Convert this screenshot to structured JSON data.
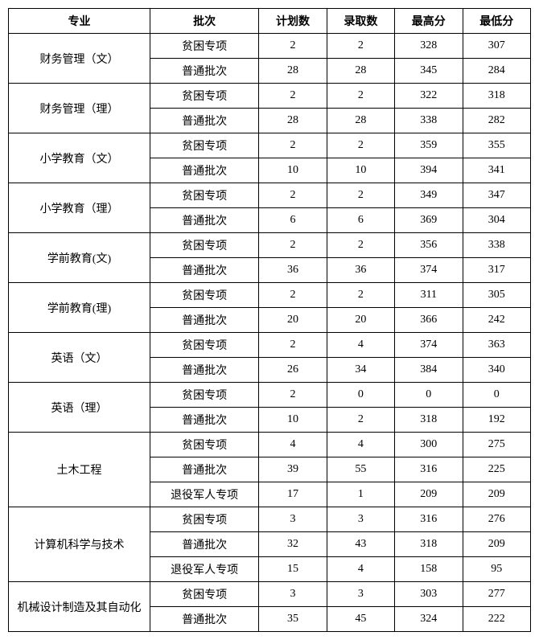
{
  "table": {
    "columns": [
      "专业",
      "批次",
      "计划数",
      "录取数",
      "最高分",
      "最低分"
    ],
    "col_classes": [
      "col-major",
      "col-batch",
      "col-num",
      "col-num",
      "col-num",
      "col-num"
    ],
    "border_color": "#000000",
    "background_color": "#ffffff",
    "font_size": 14,
    "header_font_weight": "bold",
    "groups": [
      {
        "major": "财务管理（文）",
        "rows": [
          {
            "batch": "贫困专项",
            "plan": "2",
            "admit": "2",
            "high": "328",
            "low": "307"
          },
          {
            "batch": "普通批次",
            "plan": "28",
            "admit": "28",
            "high": "345",
            "low": "284"
          }
        ]
      },
      {
        "major": "财务管理（理）",
        "rows": [
          {
            "batch": "贫困专项",
            "plan": "2",
            "admit": "2",
            "high": "322",
            "low": "318"
          },
          {
            "batch": "普通批次",
            "plan": "28",
            "admit": "28",
            "high": "338",
            "low": "282"
          }
        ]
      },
      {
        "major": "小学教育（文）",
        "rows": [
          {
            "batch": "贫困专项",
            "plan": "2",
            "admit": "2",
            "high": "359",
            "low": "355"
          },
          {
            "batch": "普通批次",
            "plan": "10",
            "admit": "10",
            "high": "394",
            "low": "341"
          }
        ]
      },
      {
        "major": "小学教育（理）",
        "rows": [
          {
            "batch": "贫困专项",
            "plan": "2",
            "admit": "2",
            "high": "349",
            "low": "347"
          },
          {
            "batch": "普通批次",
            "plan": "6",
            "admit": "6",
            "high": "369",
            "low": "304"
          }
        ]
      },
      {
        "major": "学前教育(文)",
        "rows": [
          {
            "batch": "贫困专项",
            "plan": "2",
            "admit": "2",
            "high": "356",
            "low": "338"
          },
          {
            "batch": "普通批次",
            "plan": "36",
            "admit": "36",
            "high": "374",
            "low": "317"
          }
        ]
      },
      {
        "major": "学前教育(理)",
        "rows": [
          {
            "batch": "贫困专项",
            "plan": "2",
            "admit": "2",
            "high": "311",
            "low": "305"
          },
          {
            "batch": "普通批次",
            "plan": "20",
            "admit": "20",
            "high": "366",
            "low": "242"
          }
        ]
      },
      {
        "major": "英语（文）",
        "rows": [
          {
            "batch": "贫困专项",
            "plan": "2",
            "admit": "4",
            "high": "374",
            "low": "363"
          },
          {
            "batch": "普通批次",
            "plan": "26",
            "admit": "34",
            "high": "384",
            "low": "340"
          }
        ]
      },
      {
        "major": "英语（理）",
        "rows": [
          {
            "batch": "贫困专项",
            "plan": "2",
            "admit": "0",
            "high": "0",
            "low": "0"
          },
          {
            "batch": "普通批次",
            "plan": "10",
            "admit": "2",
            "high": "318",
            "low": "192"
          }
        ]
      },
      {
        "major": "土木工程",
        "rows": [
          {
            "batch": "贫困专项",
            "plan": "4",
            "admit": "4",
            "high": "300",
            "low": "275"
          },
          {
            "batch": "普通批次",
            "plan": "39",
            "admit": "55",
            "high": "316",
            "low": "225"
          },
          {
            "batch": "退役军人专项",
            "plan": "17",
            "admit": "1",
            "high": "209",
            "low": "209"
          }
        ]
      },
      {
        "major": "计算机科学与技术",
        "rows": [
          {
            "batch": "贫困专项",
            "plan": "3",
            "admit": "3",
            "high": "316",
            "low": "276"
          },
          {
            "batch": "普通批次",
            "plan": "32",
            "admit": "43",
            "high": "318",
            "low": "209"
          },
          {
            "batch": "退役军人专项",
            "plan": "15",
            "admit": "4",
            "high": "158",
            "low": "95"
          }
        ]
      },
      {
        "major": "机械设计制造及其自动化",
        "rows": [
          {
            "batch": "贫困专项",
            "plan": "3",
            "admit": "3",
            "high": "303",
            "low": "277"
          },
          {
            "batch": "普通批次",
            "plan": "35",
            "admit": "45",
            "high": "324",
            "low": "222"
          }
        ]
      }
    ]
  }
}
